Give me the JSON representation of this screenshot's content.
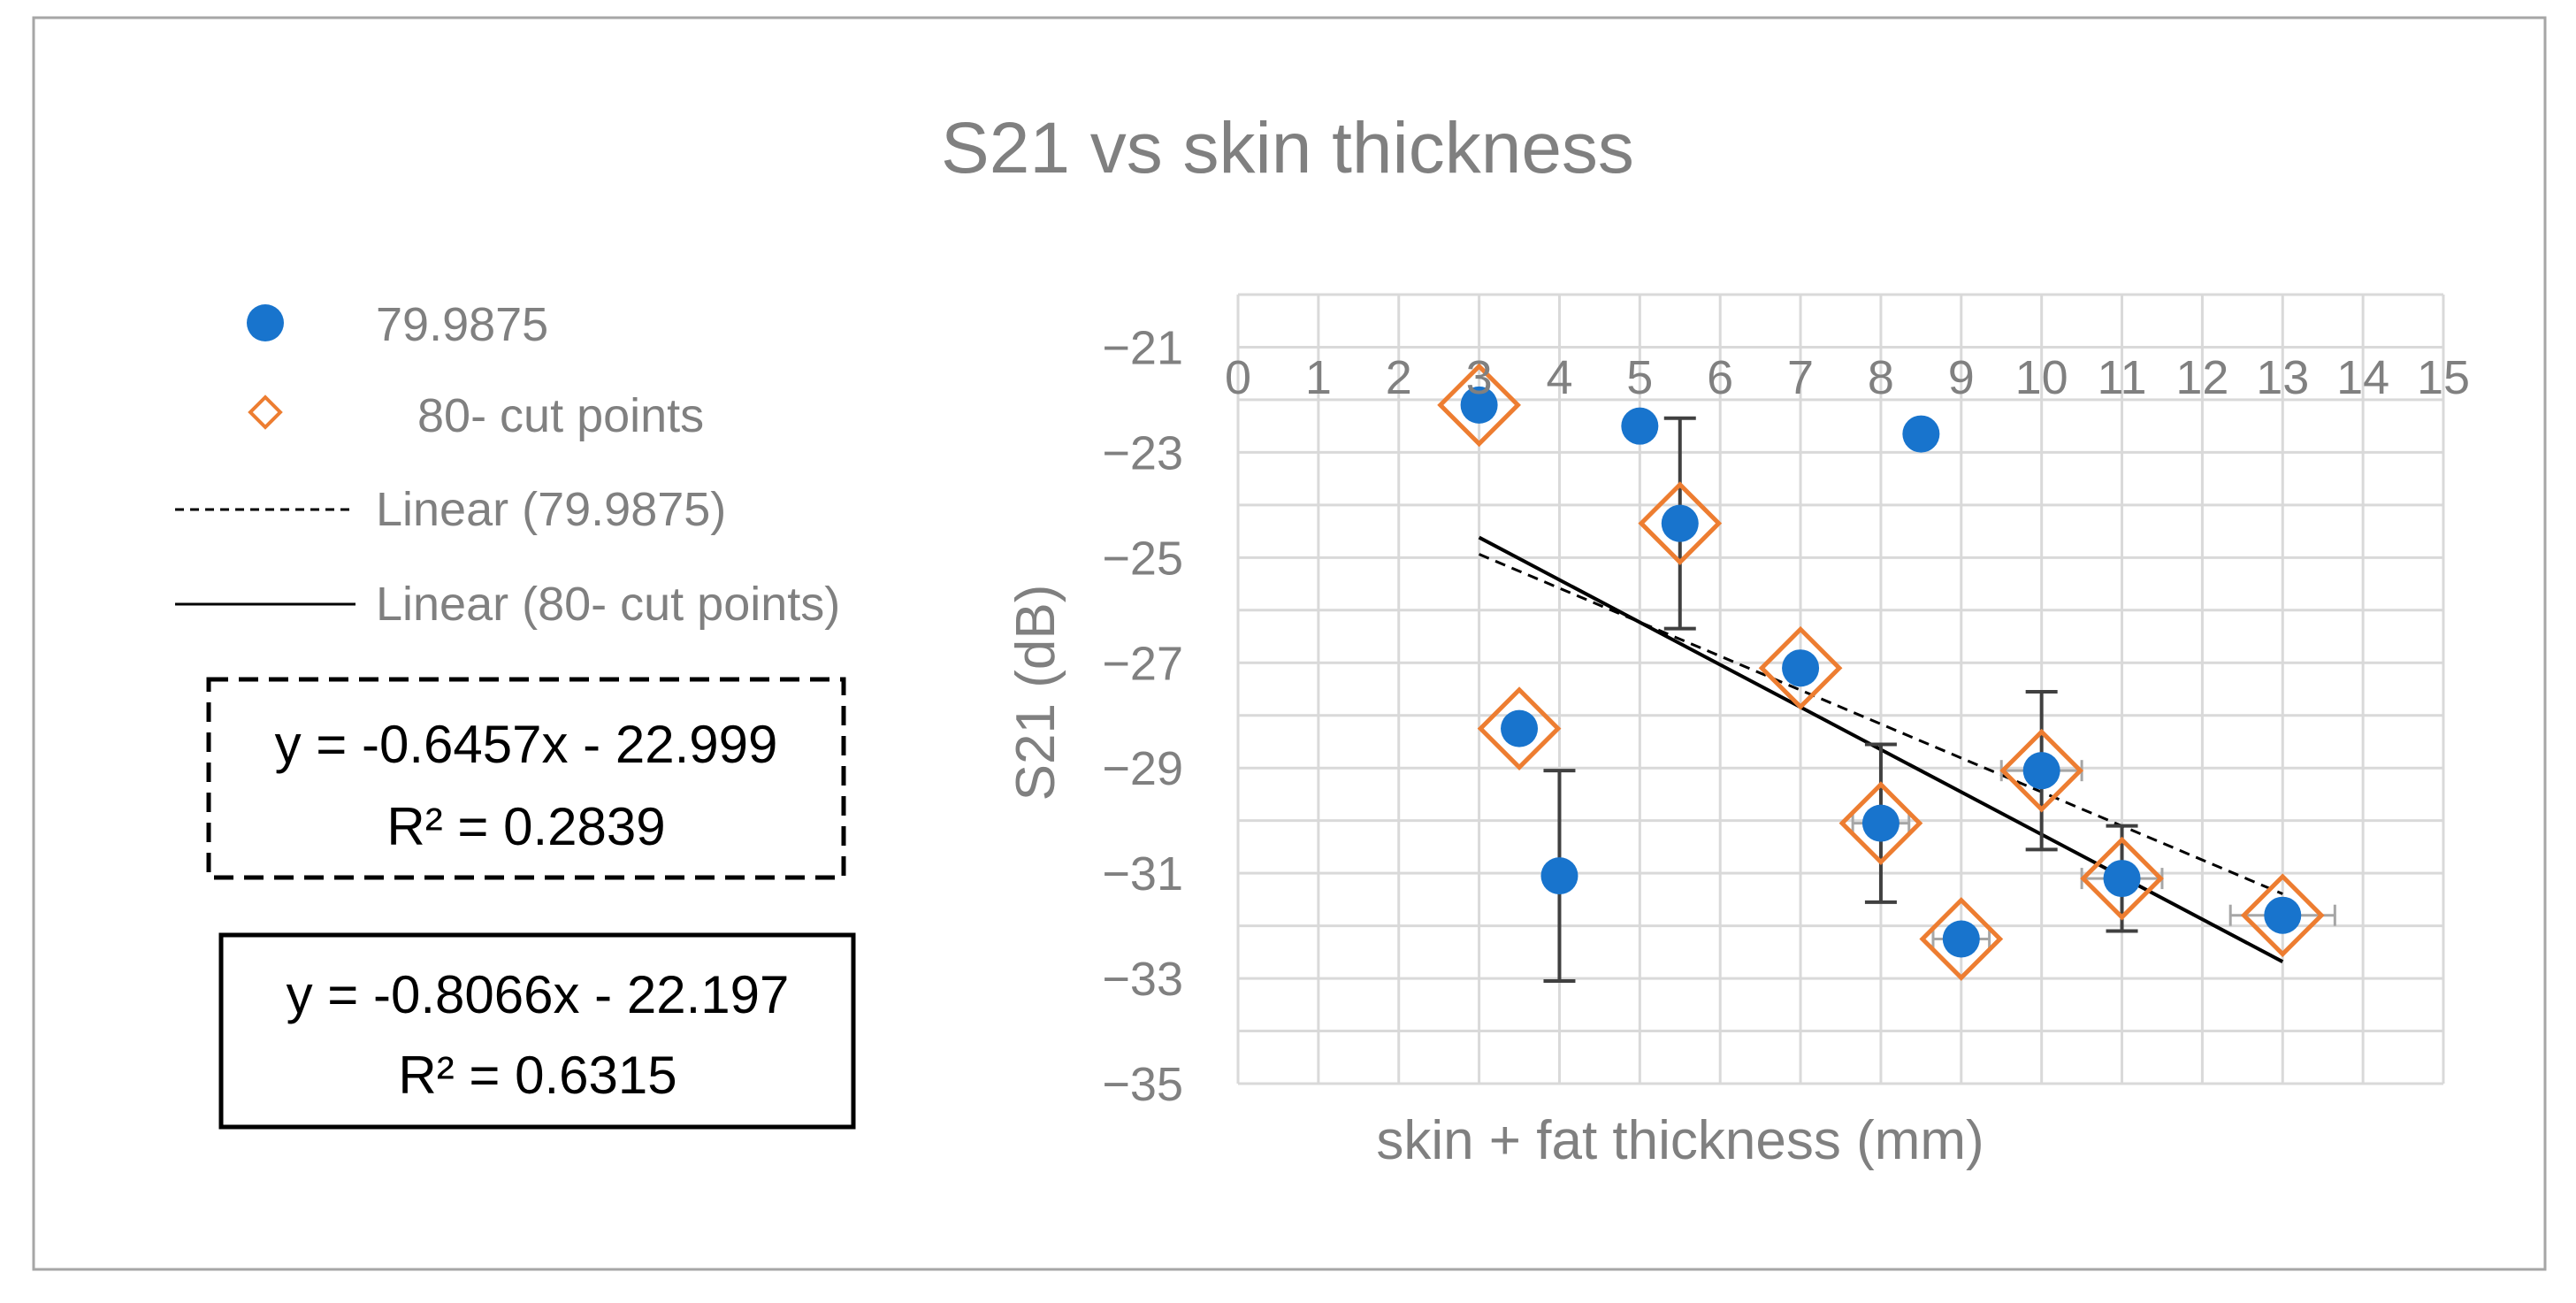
{
  "chart_data": {
    "type": "scatter",
    "title": "S21 vs skin thickness",
    "xlabel": "skin + fat thickness (mm)",
    "ylabel": "S21 (dB)",
    "xlim": [
      0,
      15
    ],
    "ylim": [
      -35,
      -20
    ],
    "x_ticks": [
      "0",
      "1",
      "2",
      "3",
      "4",
      "5",
      "6",
      "7",
      "8",
      "9",
      "10",
      "11",
      "12",
      "13",
      "14",
      "15"
    ],
    "y_ticks": [
      "−21",
      "−23",
      "−25",
      "−27",
      "−29",
      "−31",
      "−33",
      "−35"
    ],
    "grid": true,
    "legend_position": "left",
    "series": [
      {
        "name": "79.9875",
        "marker": "circle",
        "color": "#1874CD",
        "points": [
          {
            "x": 3,
            "y": -22.1
          },
          {
            "x": 3.5,
            "y": -28.25
          },
          {
            "x": 4,
            "y": -31.05,
            "y_err": 2.0
          },
          {
            "x": 5,
            "y": -22.5
          },
          {
            "x": 5.5,
            "y": -24.35,
            "y_err": 2.0
          },
          {
            "x": 7,
            "y": -27.1
          },
          {
            "x": 8,
            "y": -30.05,
            "y_err": 1.5
          },
          {
            "x": 8.5,
            "y": -22.65
          },
          {
            "x": 9,
            "y": -32.25
          },
          {
            "x": 10,
            "y": -29.05,
            "y_err": 1.5
          },
          {
            "x": 11,
            "y": -31.1,
            "y_err": 1.0
          },
          {
            "x": 13,
            "y": -31.8
          }
        ]
      },
      {
        "name": "80- cut points",
        "marker": "diamond-open",
        "color": "#ED7D31",
        "points": [
          {
            "x": 3,
            "y": -22.1
          },
          {
            "x": 3.5,
            "y": -28.25
          },
          {
            "x": 5.5,
            "y": -24.35
          },
          {
            "x": 7,
            "y": -27.1
          },
          {
            "x": 8,
            "y": -30.05,
            "x_err": 0.35
          },
          {
            "x": 9,
            "y": -32.25,
            "x_err": 0.35
          },
          {
            "x": 10,
            "y": -29.05,
            "x_err": 0.5
          },
          {
            "x": 11,
            "y": -31.1,
            "x_err": 0.5
          },
          {
            "x": 13,
            "y": -31.8,
            "x_err": 0.65
          }
        ]
      }
    ],
    "trendlines": [
      {
        "name": "Linear (79.9875)",
        "style": "dashed",
        "x_range": [
          3,
          13
        ],
        "slope": -0.6457,
        "intercept": -22.999
      },
      {
        "name": "Linear (80- cut points)",
        "style": "solid",
        "x_range": [
          3,
          13
        ],
        "slope": -0.8066,
        "intercept": -22.197
      }
    ],
    "annotations": [
      {
        "line1": "y = -0.6457x - 22.999",
        "line2": "R² = 0.2839",
        "border": "dashed"
      },
      {
        "line1": "y = -0.8066x - 22.197",
        "line2": "R² = 0.6315",
        "border": "solid"
      }
    ],
    "colors": {
      "text": "#808080",
      "grid": "#D9D9D9",
      "error_bar": "#404040"
    }
  }
}
